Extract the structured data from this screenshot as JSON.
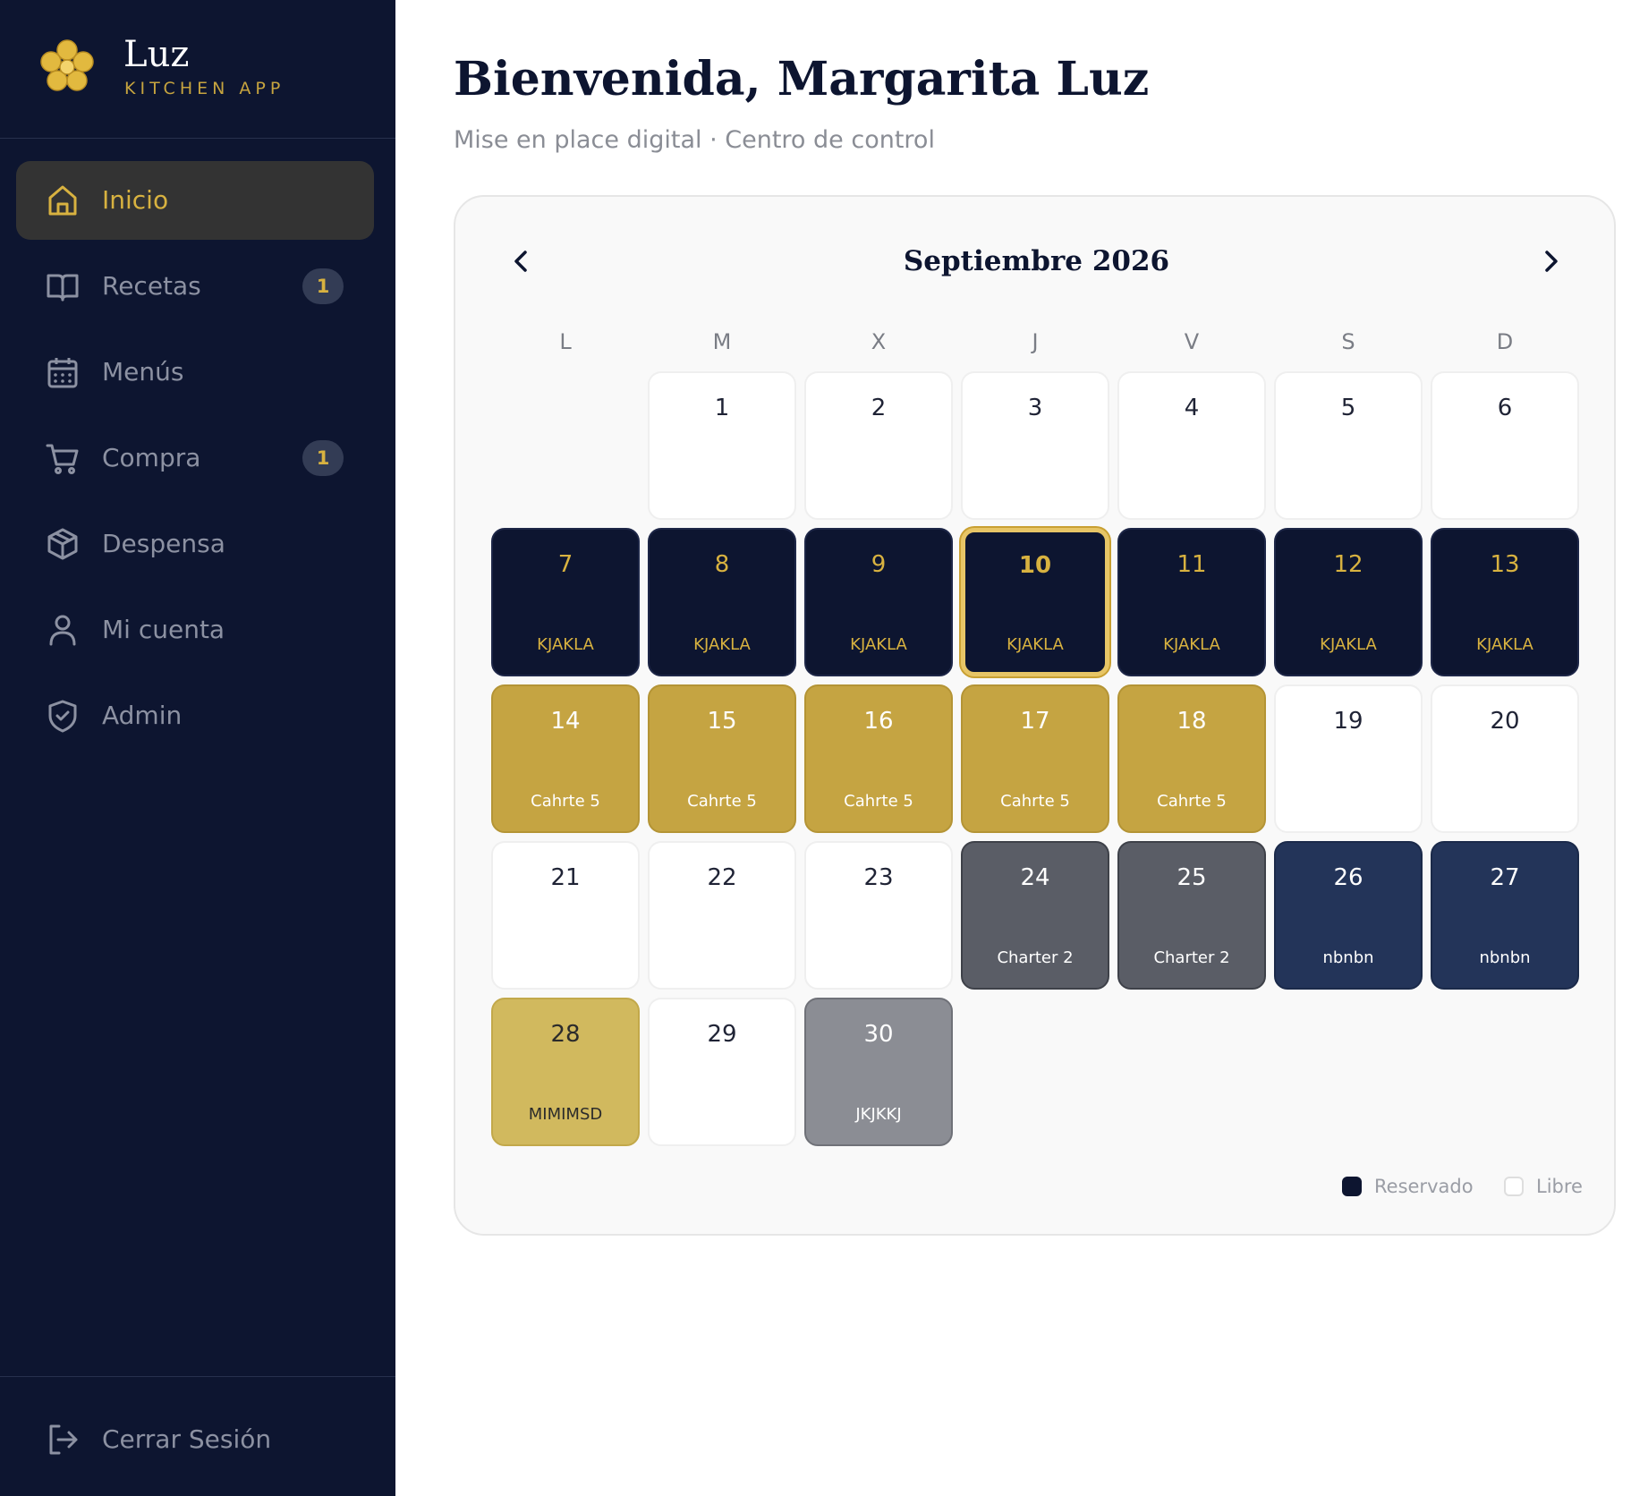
{
  "brand": {
    "name": "Luz",
    "subtitle": "KITCHEN APP",
    "accent": "#d8b240",
    "bg": "#0d1530"
  },
  "sidebar": {
    "items": [
      {
        "label": "Inicio",
        "icon": "home-icon",
        "active": true,
        "badge": ""
      },
      {
        "label": "Recetas",
        "icon": "book-icon",
        "active": false,
        "badge": "1"
      },
      {
        "label": "Menús",
        "icon": "calendar-icon",
        "active": false,
        "badge": ""
      },
      {
        "label": "Compra",
        "icon": "cart-icon",
        "active": false,
        "badge": "1"
      },
      {
        "label": "Despensa",
        "icon": "box-icon",
        "active": false,
        "badge": ""
      },
      {
        "label": "Mi cuenta",
        "icon": "user-icon",
        "active": false,
        "badge": ""
      },
      {
        "label": "Admin",
        "icon": "shield-icon",
        "active": false,
        "badge": ""
      }
    ],
    "logout": {
      "label": "Cerrar Sesión",
      "icon": "logout-icon"
    }
  },
  "header": {
    "title": "Bienvenida, Margarita Luz",
    "subtitle": "Mise en place digital · Centro de control"
  },
  "calendar": {
    "month": "Septiembre 2026",
    "weekdays": [
      "L",
      "M",
      "X",
      "J",
      "V",
      "S",
      "D"
    ],
    "today": "10",
    "days": [
      {
        "num": "1",
        "label": "",
        "status": "free"
      },
      {
        "num": "2",
        "label": "",
        "status": "free"
      },
      {
        "num": "3",
        "label": "",
        "status": "free"
      },
      {
        "num": "4",
        "label": "",
        "status": "free"
      },
      {
        "num": "5",
        "label": "",
        "status": "free"
      },
      {
        "num": "6",
        "label": "",
        "status": "free"
      },
      {
        "num": "7",
        "label": "KJAKLA",
        "status": "navy"
      },
      {
        "num": "8",
        "label": "KJAKLA",
        "status": "navy"
      },
      {
        "num": "9",
        "label": "KJAKLA",
        "status": "navy"
      },
      {
        "num": "10",
        "label": "KJAKLA",
        "status": "navy"
      },
      {
        "num": "11",
        "label": "KJAKLA",
        "status": "navy"
      },
      {
        "num": "12",
        "label": "KJAKLA",
        "status": "navy"
      },
      {
        "num": "13",
        "label": "KJAKLA",
        "status": "navy"
      },
      {
        "num": "14",
        "label": "Cahrte 5",
        "status": "gold"
      },
      {
        "num": "15",
        "label": "Cahrte 5",
        "status": "gold"
      },
      {
        "num": "16",
        "label": "Cahrte 5",
        "status": "gold"
      },
      {
        "num": "17",
        "label": "Cahrte 5",
        "status": "gold"
      },
      {
        "num": "18",
        "label": "Cahrte 5",
        "status": "gold"
      },
      {
        "num": "19",
        "label": "",
        "status": "free"
      },
      {
        "num": "20",
        "label": "",
        "status": "free"
      },
      {
        "num": "21",
        "label": "",
        "status": "free"
      },
      {
        "num": "22",
        "label": "",
        "status": "free"
      },
      {
        "num": "23",
        "label": "",
        "status": "free"
      },
      {
        "num": "24",
        "label": "Charter 2",
        "status": "slate"
      },
      {
        "num": "25",
        "label": "Charter 2",
        "status": "slate"
      },
      {
        "num": "26",
        "label": "nbnbn",
        "status": "blue"
      },
      {
        "num": "27",
        "label": "nbnbn",
        "status": "blue"
      },
      {
        "num": "28",
        "label": "MIMIMSD",
        "status": "yellow"
      },
      {
        "num": "29",
        "label": "",
        "status": "free"
      },
      {
        "num": "30",
        "label": "JKJKKJ",
        "status": "grey"
      }
    ],
    "legend": [
      {
        "label": "Reservado",
        "color": "#0d1530"
      },
      {
        "label": "Libre",
        "color": "#ffffff"
      }
    ]
  }
}
